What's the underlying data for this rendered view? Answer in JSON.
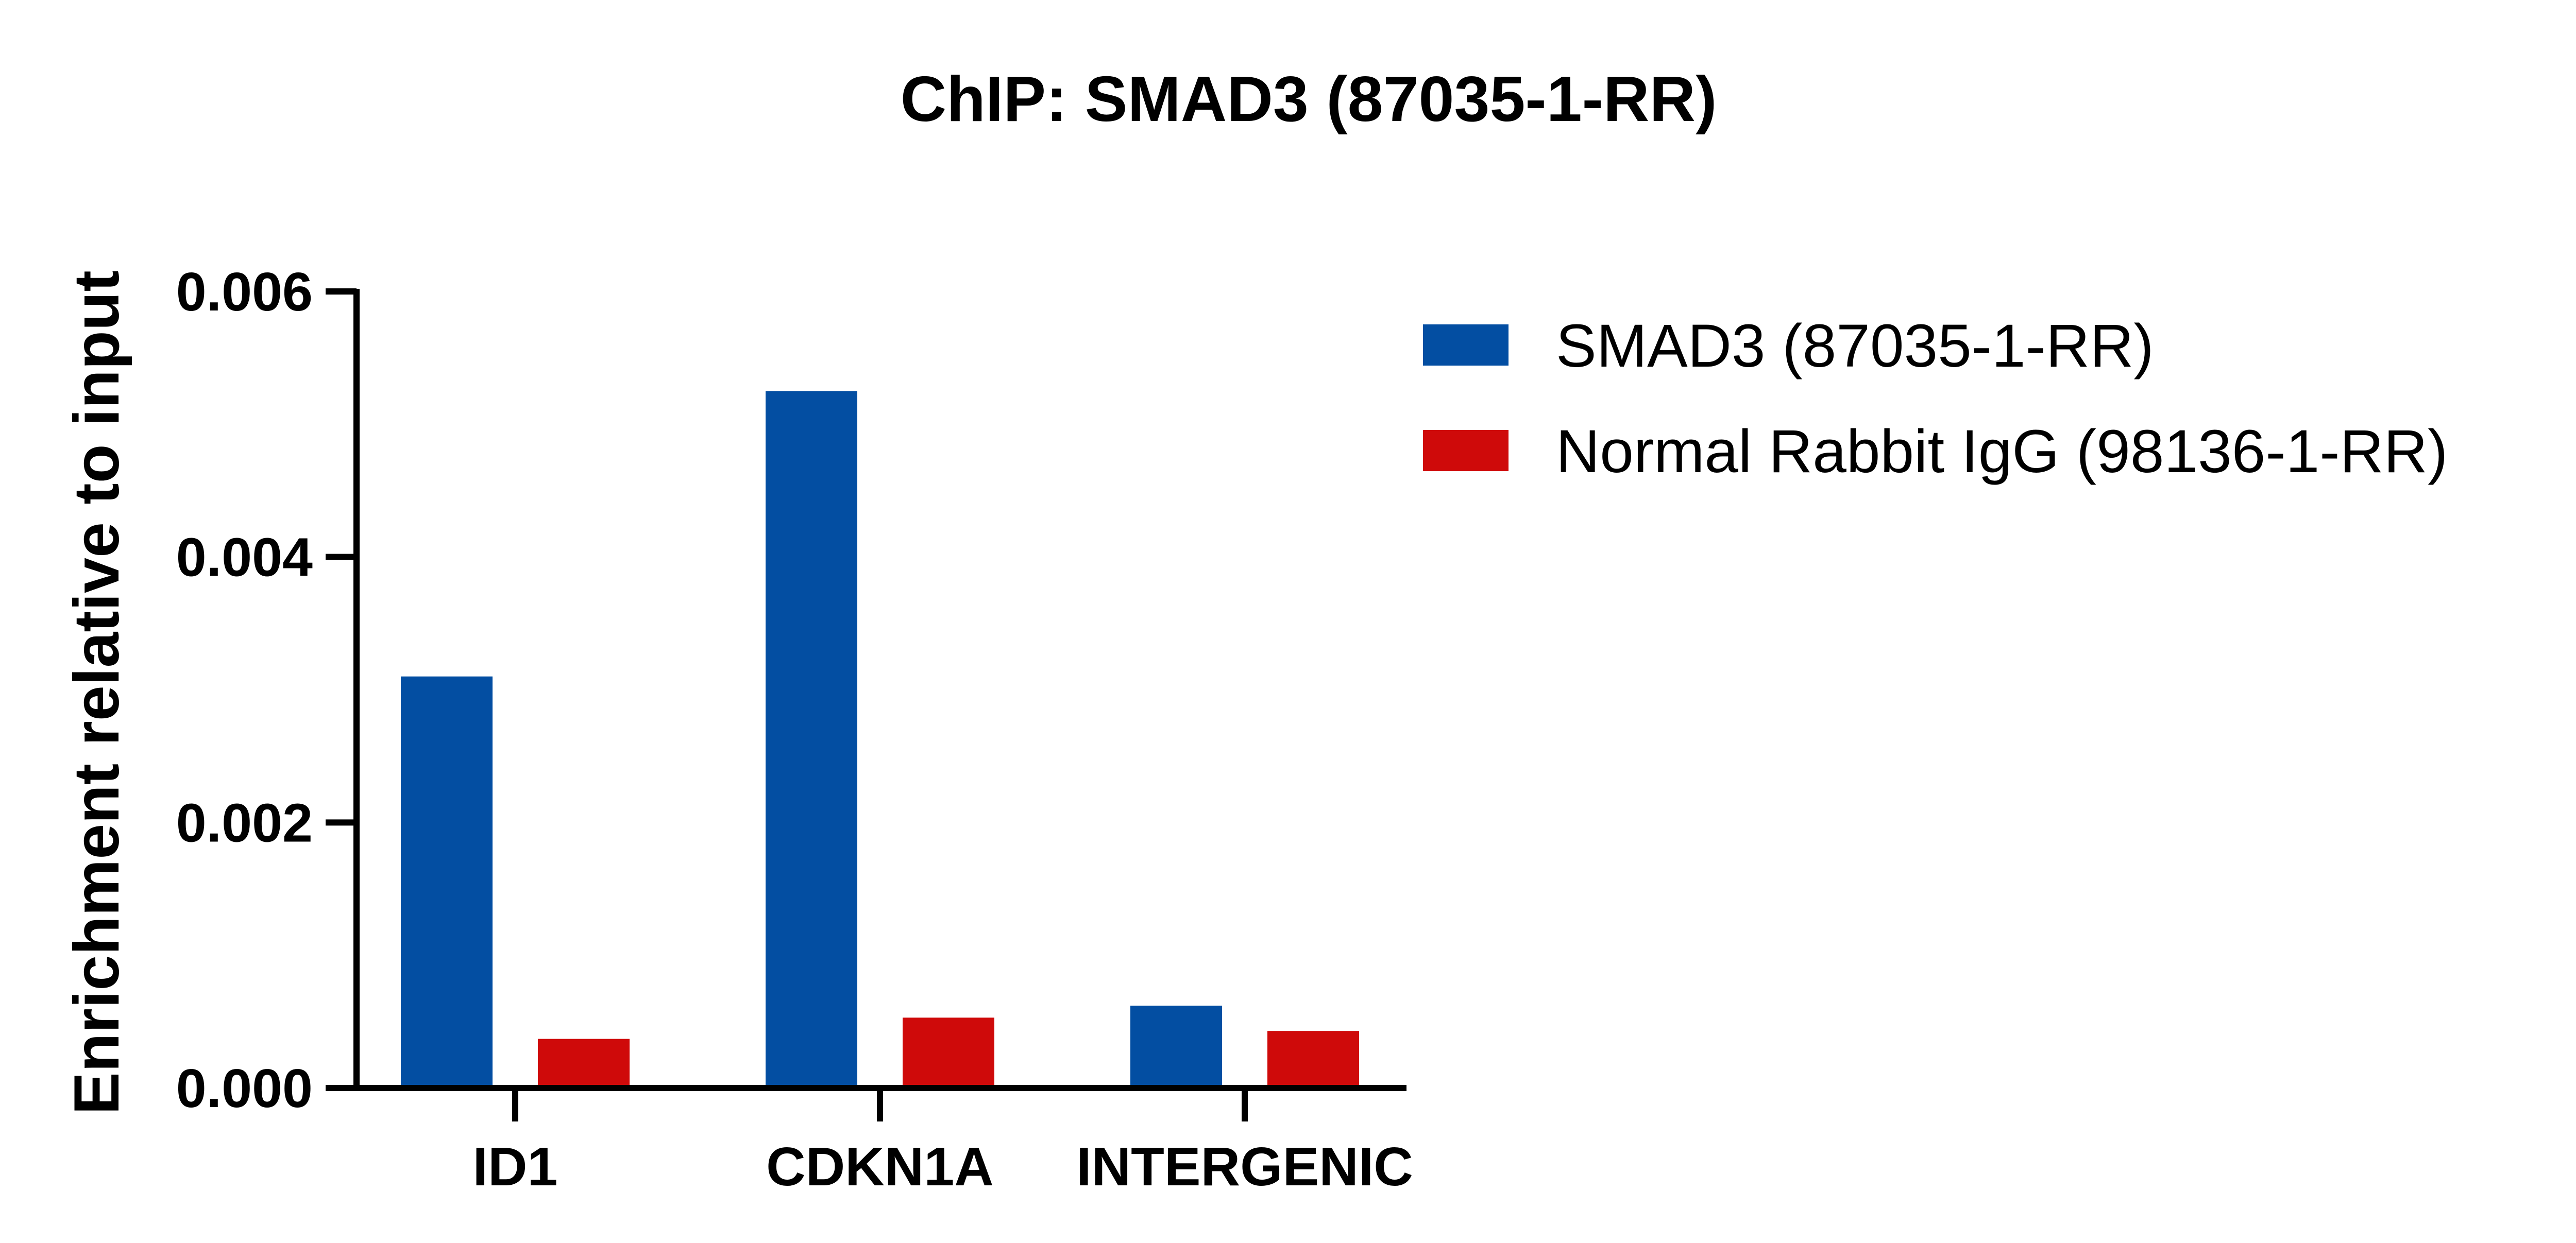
{
  "colors": {
    "smad3": "#034EA2",
    "igg": "#CF0A0A",
    "axis": "#000000"
  },
  "chart_data": {
    "type": "bar",
    "title": "ChIP: SMAD3 (87035-1-RR)",
    "xlabel": "",
    "ylabel": "Enrichment relative to input",
    "categories": [
      "ID1",
      "CDKN1A",
      "INTERGENIC"
    ],
    "series": [
      {
        "name": "SMAD3 (87035-1-RR)",
        "values": [
          0.0031,
          0.00525,
          0.00062
        ]
      },
      {
        "name": "Normal Rabbit IgG (98136-1-RR)",
        "values": [
          0.00037,
          0.00053,
          0.00043
        ]
      }
    ],
    "ylim": [
      0,
      0.006
    ],
    "yticks": [
      0,
      0.002,
      0.004,
      0.006
    ],
    "ytick_labels": [
      "0.000",
      "0.002",
      "0.004",
      "0.006"
    ],
    "grid": false,
    "legend_position": "right"
  }
}
